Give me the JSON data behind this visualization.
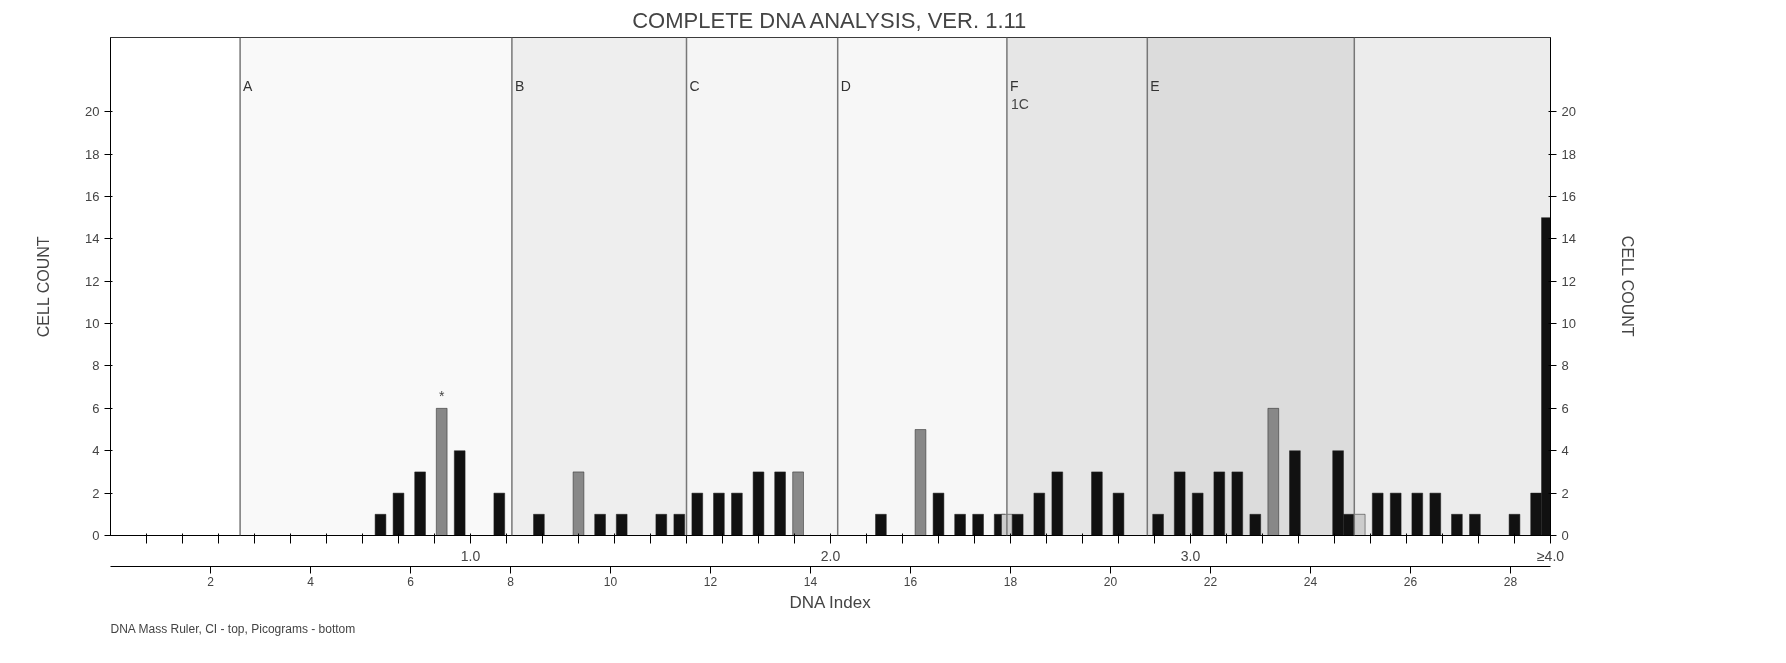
{
  "chart_data": {
    "type": "bar",
    "title": "COMPLETE DNA ANALYSIS, VER. 1.11",
    "xlabel": "DNA Index",
    "ylabel": "CELL COUNT",
    "y2label": "CELL COUNT",
    "x": [
      0.75,
      0.8,
      0.86,
      0.92,
      0.97,
      1.08,
      1.19,
      1.3,
      1.36,
      1.42,
      1.53,
      1.58,
      1.63,
      1.69,
      1.74,
      1.8,
      1.86,
      1.91,
      2.14,
      2.25,
      2.3,
      2.36,
      2.41,
      2.47,
      2.49,
      2.52,
      2.58,
      2.63,
      2.74,
      2.8,
      2.91,
      2.97,
      3.02,
      3.08,
      3.13,
      3.18,
      3.23,
      3.29,
      3.41,
      3.44,
      3.47,
      3.52,
      3.57,
      3.63,
      3.68,
      3.74,
      3.79,
      3.9,
      3.96,
      3.99
    ],
    "values": [
      1,
      2,
      3,
      6,
      4,
      2,
      1,
      3,
      1,
      1,
      1,
      1,
      2,
      2,
      2,
      3,
      3,
      3,
      1,
      5,
      2,
      1,
      1,
      1,
      1,
      1,
      2,
      3,
      3,
      2,
      1,
      3,
      2,
      3,
      3,
      1,
      6,
      4,
      4,
      1,
      1,
      2,
      2,
      2,
      2,
      1,
      1,
      1,
      2,
      15
    ],
    "colors": [
      "#111111",
      "#111111",
      "#111111",
      "#888888",
      "#111111",
      "#111111",
      "#111111",
      "#888888",
      "#111111",
      "#111111",
      "#111111",
      "#111111",
      "#111111",
      "#111111",
      "#111111",
      "#111111",
      "#111111",
      "#888888",
      "#111111",
      "#888888",
      "#111111",
      "#111111",
      "#111111",
      "#111111",
      "#cccccc",
      "#111111",
      "#111111",
      "#111111",
      "#111111",
      "#111111",
      "#111111",
      "#111111",
      "#111111",
      "#111111",
      "#111111",
      "#111111",
      "#888888",
      "#111111",
      "#111111",
      "#111111",
      "#cccccc",
      "#111111",
      "#111111",
      "#111111",
      "#111111",
      "#111111",
      "#111111",
      "#111111",
      "#111111",
      "#111111"
    ],
    "xlim": [
      0,
      4.0
    ],
    "xticks": [
      {
        "value": 0.1,
        "label": null
      },
      {
        "value": 0.2,
        "label": null
      },
      {
        "value": 0.3,
        "label": null
      },
      {
        "value": 0.4,
        "label": null
      },
      {
        "value": 0.5,
        "label": null
      },
      {
        "value": 0.6,
        "label": null
      },
      {
        "value": 0.7,
        "label": null
      },
      {
        "value": 0.8,
        "label": null
      },
      {
        "value": 0.9,
        "label": null
      },
      {
        "value": 1.0,
        "label": "1.0"
      },
      {
        "value": 1.1,
        "label": null
      },
      {
        "value": 1.2,
        "label": null
      },
      {
        "value": 1.3,
        "label": null
      },
      {
        "value": 1.4,
        "label": null
      },
      {
        "value": 1.5,
        "label": null
      },
      {
        "value": 1.6,
        "label": null
      },
      {
        "value": 1.7,
        "label": null
      },
      {
        "value": 1.8,
        "label": null
      },
      {
        "value": 1.9,
        "label": null
      },
      {
        "value": 2.0,
        "label": "2.0"
      },
      {
        "value": 2.1,
        "label": null
      },
      {
        "value": 2.2,
        "label": null
      },
      {
        "value": 2.3,
        "label": null
      },
      {
        "value": 2.4,
        "label": null
      },
      {
        "value": 2.5,
        "label": null
      },
      {
        "value": 2.6,
        "label": null
      },
      {
        "value": 2.7,
        "label": null
      },
      {
        "value": 2.8,
        "label": null
      },
      {
        "value": 2.9,
        "label": null
      },
      {
        "value": 3.0,
        "label": "3.0"
      },
      {
        "value": 3.1,
        "label": null
      },
      {
        "value": 3.2,
        "label": null
      },
      {
        "value": 3.3,
        "label": null
      },
      {
        "value": 3.4,
        "label": null
      },
      {
        "value": 3.5,
        "label": null
      },
      {
        "value": 3.6,
        "label": null
      },
      {
        "value": 3.7,
        "label": null
      },
      {
        "value": 3.8,
        "label": null
      },
      {
        "value": 3.9,
        "label": null
      },
      {
        "value": 4.0,
        "label": "≥4.0"
      }
    ],
    "x2lim": [
      0,
      28.8
    ],
    "x2ticks": [
      2,
      4,
      6,
      8,
      10,
      12,
      14,
      16,
      18,
      20,
      22,
      24,
      26,
      28
    ],
    "ylim": [
      0,
      23.5
    ],
    "yticks": [
      0,
      2,
      4,
      6,
      8,
      10,
      12,
      14,
      16,
      18,
      20
    ],
    "y2lim": [
      0,
      23.5
    ],
    "y2ticks": [
      0,
      2,
      4,
      6,
      8,
      10,
      12,
      14,
      16,
      18,
      20
    ],
    "ref_lines": [
      {
        "axis": "x",
        "value": 0.36,
        "label": "A"
      },
      {
        "axis": "x",
        "value": 1.115,
        "label": "B"
      },
      {
        "axis": "x",
        "value": 1.6,
        "label": "C"
      },
      {
        "axis": "x",
        "value": 2.02,
        "label": "D"
      },
      {
        "axis": "x",
        "value": 2.49,
        "label": "F"
      },
      {
        "axis": "x",
        "value": 2.88,
        "label": "E"
      },
      {
        "axis": "x",
        "value": 3.455,
        "label": null
      }
    ],
    "bands": [
      {
        "axis": "x",
        "from": 0.36,
        "to": 1.115,
        "label": null,
        "color": "#e4e4e4"
      },
      {
        "axis": "x",
        "from": 1.115,
        "to": 1.6,
        "label": null,
        "color": "#b0b0b0"
      },
      {
        "axis": "x",
        "from": 1.6,
        "to": 2.02,
        "label": null,
        "color": "#d0d0d0"
      },
      {
        "axis": "x",
        "from": 2.02,
        "to": 2.49,
        "label": null,
        "color": "#dadada"
      },
      {
        "axis": "x",
        "from": 2.49,
        "to": 2.88,
        "label": null,
        "color": "#8c8c8c"
      },
      {
        "axis": "x",
        "from": 2.88,
        "to": 3.455,
        "label": null,
        "color": "#606060"
      },
      {
        "axis": "x",
        "from": 3.455,
        "to": 4.0,
        "label": null,
        "color": "#a8a8a8"
      }
    ],
    "annotations": [
      {
        "text": "*",
        "x": 0.92,
        "y": 6
      },
      {
        "text": "1C",
        "x": 2.49,
        "y": 19.8
      },
      "DNA Mass Ruler, CI - top, Picograms - bottom"
    ],
    "grid": false
  }
}
